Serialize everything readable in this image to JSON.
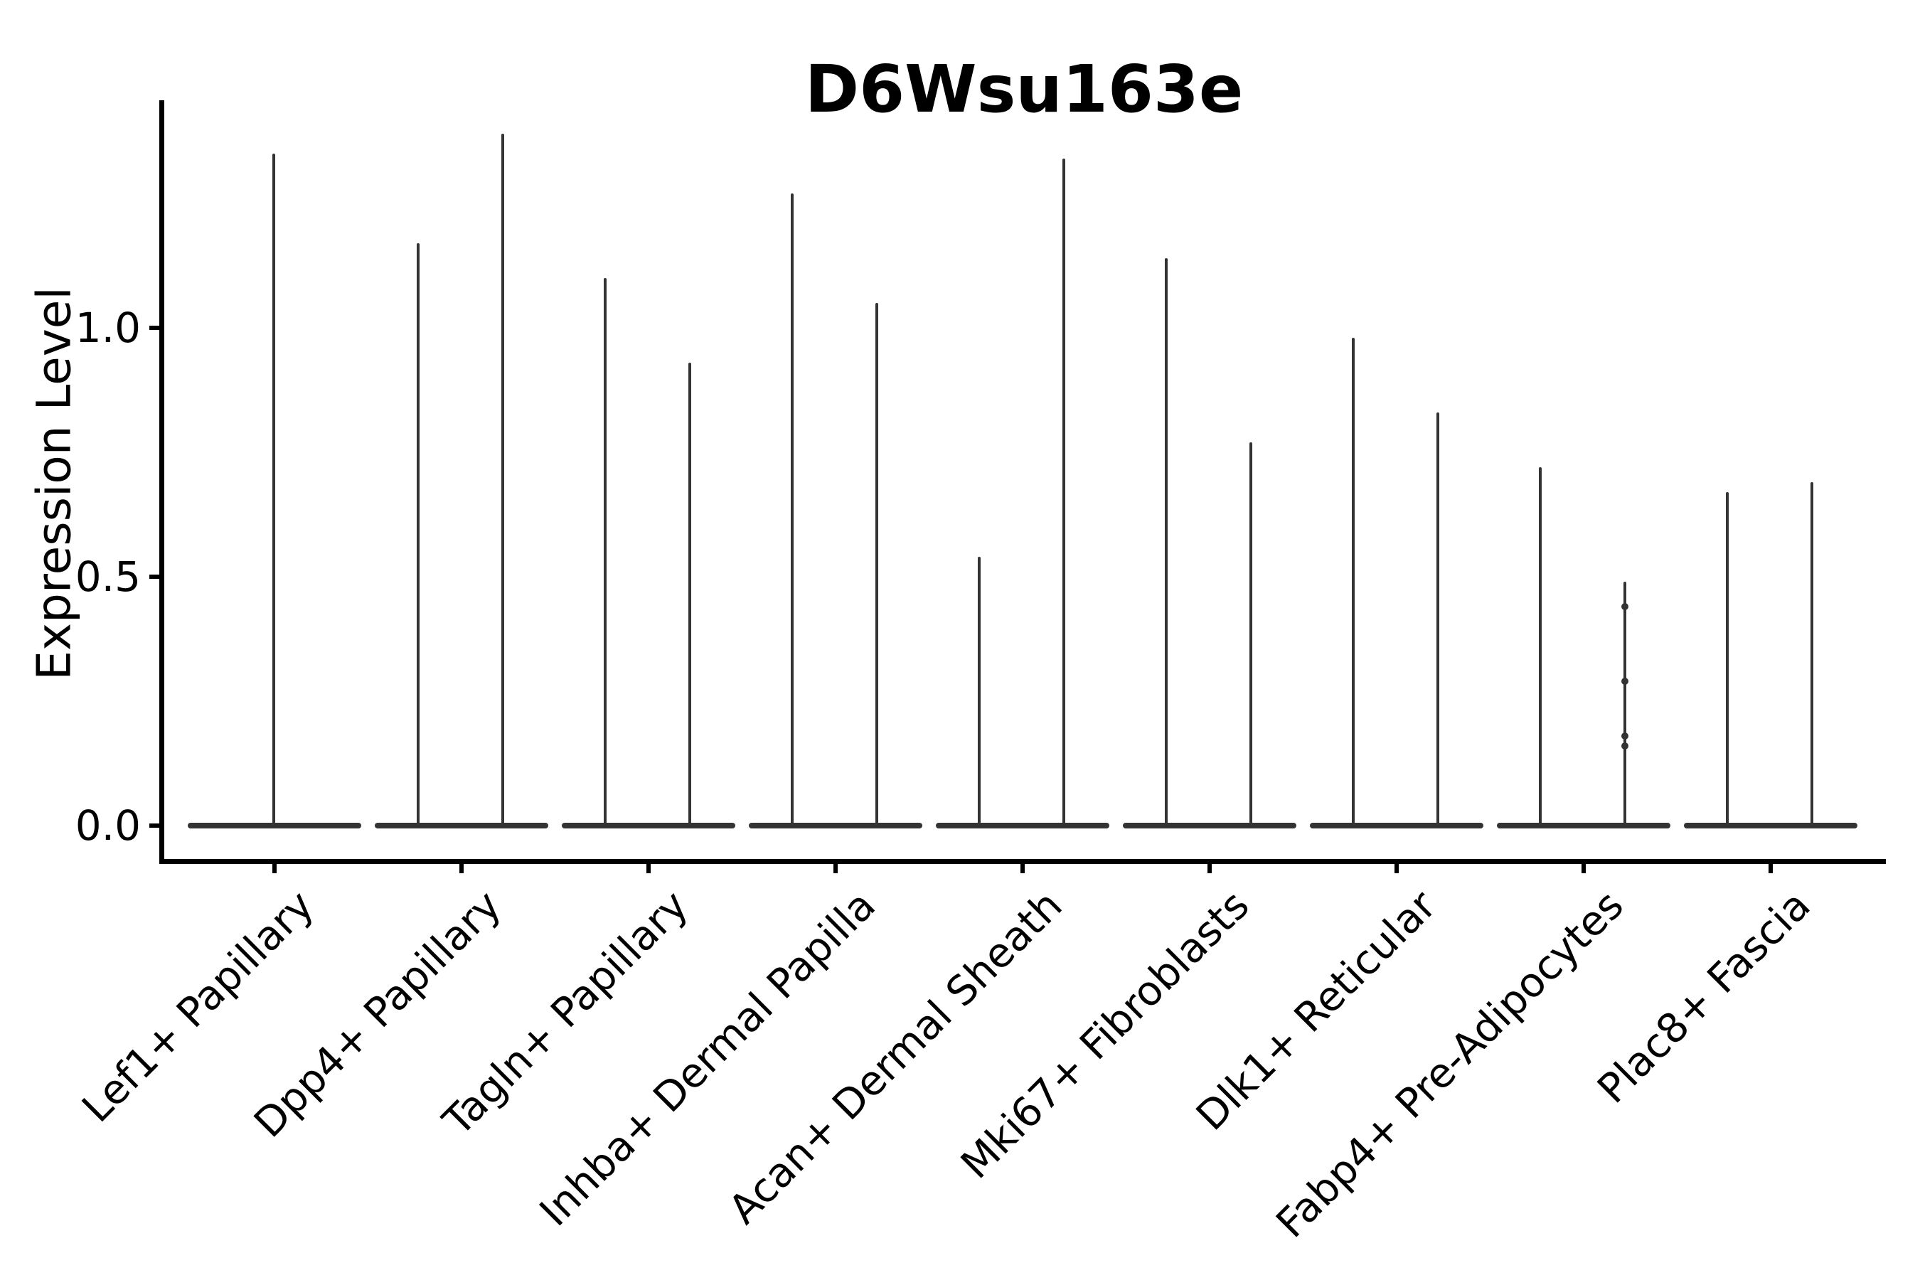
{
  "figure": {
    "title": "D6Wsu163e",
    "y_axis": {
      "label": "Expression Level",
      "tick_labels": [
        "0.0",
        "0.5",
        "1.0"
      ]
    }
  },
  "colors": {
    "violin_line": "#333333",
    "axis_spine": "#000000",
    "text": "#000000",
    "background": "#ffffff"
  },
  "chart_data": {
    "type": "violin",
    "title": "D6Wsu163e",
    "xlabel": "",
    "ylabel": "Expression Level",
    "ylim": [
      -0.07,
      1.46
    ],
    "yticks": [
      0.0,
      0.5,
      1.0
    ],
    "grid": false,
    "legend": "none",
    "description": "Needle-thin violins: each category has a flat base at expression 0 and thin vertical spikes reaching the max expression value; first category has a single centered spike, the others have a left and right spike pair.",
    "categories": [
      "Lef1+ Papillary",
      "Dpp4+ Papillary",
      "Tagln+ Papillary",
      "Inhba+ Dermal Papilla",
      "Acan+ Dermal Sheath",
      "Mki67+ Fibroblasts",
      "Dlk1+ Reticular",
      "Fabp4+ Pre-Adipocytes",
      "Plac8+ Fascia"
    ],
    "violins": [
      {
        "category": "Lef1+ Papillary",
        "spikes": [
          {
            "position": "center",
            "max": 1.35
          }
        ]
      },
      {
        "category": "Dpp4+ Papillary",
        "spikes": [
          {
            "position": "left",
            "max": 1.17
          },
          {
            "position": "right",
            "max": 1.39
          }
        ]
      },
      {
        "category": "Tagln+ Papillary",
        "spikes": [
          {
            "position": "left",
            "max": 1.1
          },
          {
            "position": "right",
            "max": 0.93
          }
        ]
      },
      {
        "category": "Inhba+ Dermal Papilla",
        "spikes": [
          {
            "position": "left",
            "max": 1.27
          },
          {
            "position": "right",
            "max": 1.05
          }
        ]
      },
      {
        "category": "Acan+ Dermal Sheath",
        "spikes": [
          {
            "position": "left",
            "max": 0.54
          },
          {
            "position": "right",
            "max": 1.34
          }
        ]
      },
      {
        "category": "Mki67+ Fibroblasts",
        "spikes": [
          {
            "position": "left",
            "max": 1.14
          },
          {
            "position": "right",
            "max": 0.77
          }
        ]
      },
      {
        "category": "Dlk1+ Reticular",
        "spikes": [
          {
            "position": "left",
            "max": 0.98
          },
          {
            "position": "right",
            "max": 0.83
          }
        ]
      },
      {
        "category": "Fabp4+ Pre-Adipocytes",
        "spikes": [
          {
            "position": "left",
            "max": 0.72
          },
          {
            "position": "right",
            "max": 0.49,
            "dots": [
              0.44,
              0.29,
              0.18,
              0.16
            ]
          }
        ]
      },
      {
        "category": "Plac8+ Fascia",
        "spikes": [
          {
            "position": "left",
            "max": 0.67
          },
          {
            "position": "right",
            "max": 0.69
          }
        ]
      }
    ]
  }
}
